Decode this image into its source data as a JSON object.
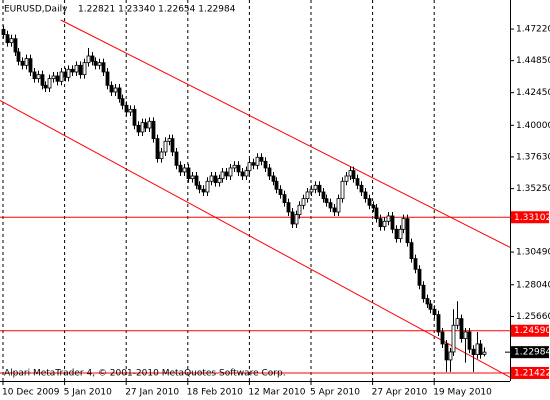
{
  "chart_data": {
    "type": "candlestick",
    "symbol": "EURUSD,Daily",
    "ohlc_text": "1.22821 1.23340 1.22654 1.22984",
    "footer": "Alpari MetaTrader 4, © 2001-2010 MetaQuotes Software Corp.",
    "ylim": [
      1.2082,
      1.494
    ],
    "yticks": [
      {
        "value": 1.4722,
        "label": "1.47220"
      },
      {
        "value": 1.4485,
        "label": "1.44850"
      },
      {
        "value": 1.4245,
        "label": "1.42450"
      },
      {
        "value": 1.4,
        "label": "1.40000"
      },
      {
        "value": 1.3763,
        "label": "1.37630"
      },
      {
        "value": 1.3525,
        "label": "1.35250"
      },
      {
        "value": 1.3049,
        "label": "1.30490"
      },
      {
        "value": 1.2804,
        "label": "1.28040"
      },
      {
        "value": 1.2566,
        "label": "1.25660"
      }
    ],
    "levels": [
      {
        "value": 1.33102,
        "label": "1.33102"
      },
      {
        "value": 1.2459,
        "label": "1.24590"
      },
      {
        "value": 1.21422,
        "label": "1.21422"
      }
    ],
    "level_color": "#ff0000",
    "current_price": {
      "value": 1.22984,
      "label": "1.22984"
    },
    "channel_lines": [
      {
        "x": [
          15,
          132
        ],
        "y": [
          1.479,
          1.308
        ]
      },
      {
        "x": [
          -1,
          132
        ],
        "y": [
          1.419,
          1.2105
        ]
      }
    ],
    "categories": [
      "10 Dec 2009",
      null,
      null,
      null,
      null,
      null,
      null,
      null,
      null,
      null,
      null,
      null,
      null,
      null,
      null,
      null,
      "5 Jan 2010",
      null,
      null,
      null,
      null,
      null,
      null,
      null,
      null,
      null,
      null,
      null,
      null,
      null,
      null,
      null,
      "27 Jan 2010",
      null,
      null,
      null,
      null,
      null,
      null,
      null,
      null,
      null,
      null,
      null,
      null,
      null,
      null,
      null,
      "18 Feb 2010",
      null,
      null,
      null,
      null,
      null,
      null,
      null,
      null,
      null,
      null,
      null,
      null,
      null,
      null,
      null,
      "12 Mar 2010",
      null,
      null,
      null,
      null,
      null,
      null,
      null,
      null,
      null,
      null,
      null,
      null,
      null,
      null,
      null,
      "5 Apr 2010",
      null,
      null,
      null,
      null,
      null,
      null,
      null,
      null,
      null,
      null,
      null,
      null,
      null,
      null,
      null,
      "27 Apr 2010",
      null,
      null,
      null,
      null,
      null,
      null,
      null,
      null,
      null,
      null,
      null,
      null,
      null,
      null,
      null,
      "19 May 2010",
      null,
      null,
      null,
      null,
      null,
      null,
      null,
      null,
      null,
      null,
      null,
      null,
      null
    ],
    "candles": [
      [
        1.472,
        1.475,
        1.465,
        1.468
      ],
      [
        1.468,
        1.471,
        1.459,
        1.462
      ],
      [
        1.462,
        1.468,
        1.459,
        1.465
      ],
      [
        1.465,
        1.468,
        1.452,
        1.455
      ],
      [
        1.455,
        1.458,
        1.445,
        1.448
      ],
      [
        1.448,
        1.451,
        1.442,
        1.445
      ],
      [
        1.445,
        1.453,
        1.442,
        1.45
      ],
      [
        1.45,
        1.453,
        1.437,
        1.44
      ],
      [
        1.44,
        1.443,
        1.432,
        1.435
      ],
      [
        1.435,
        1.441,
        1.432,
        1.438
      ],
      [
        1.438,
        1.441,
        1.427,
        1.43
      ],
      [
        1.43,
        1.433,
        1.425,
        1.428
      ],
      [
        1.428,
        1.438,
        1.425,
        1.435
      ],
      [
        1.435,
        1.44,
        1.432,
        1.437
      ],
      [
        1.437,
        1.44,
        1.43,
        1.433
      ],
      [
        1.433,
        1.443,
        1.43,
        1.44
      ],
      [
        1.44,
        1.443,
        1.433,
        1.436
      ],
      [
        1.436,
        1.445,
        1.433,
        1.442
      ],
      [
        1.442,
        1.445,
        1.437,
        1.44
      ],
      [
        1.44,
        1.448,
        1.437,
        1.445
      ],
      [
        1.445,
        1.448,
        1.435,
        1.438
      ],
      [
        1.438,
        1.45,
        1.435,
        1.447
      ],
      [
        1.447,
        1.458,
        1.444,
        1.452
      ],
      [
        1.452,
        1.455,
        1.445,
        1.448
      ],
      [
        1.448,
        1.451,
        1.442,
        1.445
      ],
      [
        1.445,
        1.45,
        1.442,
        1.447
      ],
      [
        1.447,
        1.45,
        1.437,
        1.44
      ],
      [
        1.44,
        1.443,
        1.427,
        1.43
      ],
      [
        1.43,
        1.433,
        1.422,
        1.425
      ],
      [
        1.425,
        1.431,
        1.422,
        1.428
      ],
      [
        1.428,
        1.431,
        1.417,
        1.42
      ],
      [
        1.42,
        1.423,
        1.412,
        1.415
      ],
      [
        1.415,
        1.418,
        1.407,
        1.41
      ],
      [
        1.41,
        1.415,
        1.407,
        1.412
      ],
      [
        1.412,
        1.415,
        1.397,
        1.4
      ],
      [
        1.4,
        1.403,
        1.392,
        1.395
      ],
      [
        1.395,
        1.405,
        1.392,
        1.402
      ],
      [
        1.402,
        1.405,
        1.395,
        1.398
      ],
      [
        1.398,
        1.406,
        1.395,
        1.403
      ],
      [
        1.403,
        1.406,
        1.387,
        1.39
      ],
      [
        1.39,
        1.393,
        1.372,
        1.375
      ],
      [
        1.375,
        1.383,
        1.372,
        1.38
      ],
      [
        1.38,
        1.391,
        1.377,
        1.388
      ],
      [
        1.388,
        1.393,
        1.385,
        1.39
      ],
      [
        1.39,
        1.393,
        1.377,
        1.38
      ],
      [
        1.38,
        1.383,
        1.367,
        1.37
      ],
      [
        1.37,
        1.373,
        1.362,
        1.365
      ],
      [
        1.365,
        1.371,
        1.362,
        1.368
      ],
      [
        1.368,
        1.371,
        1.357,
        1.36
      ],
      [
        1.36,
        1.365,
        1.357,
        1.362
      ],
      [
        1.362,
        1.365,
        1.352,
        1.355
      ],
      [
        1.355,
        1.358,
        1.349,
        1.352
      ],
      [
        1.352,
        1.355,
        1.347,
        1.35
      ],
      [
        1.35,
        1.361,
        1.347,
        1.358
      ],
      [
        1.358,
        1.365,
        1.355,
        1.362
      ],
      [
        1.362,
        1.365,
        1.354,
        1.357
      ],
      [
        1.357,
        1.363,
        1.354,
        1.36
      ],
      [
        1.36,
        1.368,
        1.357,
        1.365
      ],
      [
        1.365,
        1.368,
        1.359,
        1.362
      ],
      [
        1.362,
        1.371,
        1.359,
        1.368
      ],
      [
        1.368,
        1.373,
        1.365,
        1.37
      ],
      [
        1.37,
        1.373,
        1.362,
        1.365
      ],
      [
        1.365,
        1.368,
        1.359,
        1.362
      ],
      [
        1.362,
        1.369,
        1.359,
        1.366
      ],
      [
        1.366,
        1.375,
        1.363,
        1.372
      ],
      [
        1.372,
        1.375,
        1.367,
        1.37
      ],
      [
        1.37,
        1.379,
        1.367,
        1.376
      ],
      [
        1.376,
        1.379,
        1.37,
        1.373
      ],
      [
        1.373,
        1.376,
        1.365,
        1.368
      ],
      [
        1.368,
        1.371,
        1.359,
        1.362
      ],
      [
        1.362,
        1.365,
        1.355,
        1.358
      ],
      [
        1.358,
        1.361,
        1.349,
        1.352
      ],
      [
        1.352,
        1.355,
        1.345,
        1.348
      ],
      [
        1.348,
        1.351,
        1.339,
        1.342
      ],
      [
        1.342,
        1.345,
        1.332,
        1.335
      ],
      [
        1.335,
        1.338,
        1.323,
        1.326
      ],
      [
        1.326,
        1.336,
        1.323,
        1.333
      ],
      [
        1.333,
        1.343,
        1.33,
        1.34
      ],
      [
        1.34,
        1.348,
        1.337,
        1.345
      ],
      [
        1.345,
        1.353,
        1.342,
        1.35
      ],
      [
        1.35,
        1.355,
        1.347,
        1.352
      ],
      [
        1.352,
        1.358,
        1.349,
        1.355
      ],
      [
        1.355,
        1.358,
        1.347,
        1.35
      ],
      [
        1.35,
        1.353,
        1.342,
        1.345
      ],
      [
        1.345,
        1.348,
        1.339,
        1.342
      ],
      [
        1.342,
        1.345,
        1.335,
        1.338
      ],
      [
        1.338,
        1.341,
        1.332,
        1.335
      ],
      [
        1.335,
        1.348,
        1.332,
        1.345
      ],
      [
        1.345,
        1.361,
        1.342,
        1.358
      ],
      [
        1.358,
        1.365,
        1.355,
        1.362
      ],
      [
        1.362,
        1.369,
        1.359,
        1.366
      ],
      [
        1.366,
        1.369,
        1.357,
        1.36
      ],
      [
        1.36,
        1.363,
        1.352,
        1.355
      ],
      [
        1.355,
        1.358,
        1.347,
        1.35
      ],
      [
        1.35,
        1.353,
        1.342,
        1.345
      ],
      [
        1.345,
        1.348,
        1.337,
        1.34
      ],
      [
        1.34,
        1.343,
        1.335,
        1.338
      ],
      [
        1.338,
        1.341,
        1.327,
        1.33
      ],
      [
        1.33,
        1.333,
        1.321,
        1.324
      ],
      [
        1.324,
        1.331,
        1.321,
        1.328
      ],
      [
        1.328,
        1.335,
        1.325,
        1.332
      ],
      [
        1.332,
        1.335,
        1.319,
        1.322
      ],
      [
        1.322,
        1.325,
        1.312,
        1.315
      ],
      [
        1.315,
        1.325,
        1.312,
        1.322
      ],
      [
        1.322,
        1.333,
        1.319,
        1.33
      ],
      [
        1.33,
        1.333,
        1.309,
        1.312
      ],
      [
        1.312,
        1.315,
        1.297,
        1.3
      ],
      [
        1.3,
        1.303,
        1.289,
        1.292
      ],
      [
        1.292,
        1.295,
        1.277,
        1.28
      ],
      [
        1.28,
        1.283,
        1.267,
        1.27
      ],
      [
        1.27,
        1.273,
        1.263,
        1.266
      ],
      [
        1.266,
        1.269,
        1.259,
        1.262
      ],
      [
        1.262,
        1.265,
        1.255,
        1.258
      ],
      [
        1.258,
        1.261,
        1.242,
        1.245
      ],
      [
        1.245,
        1.248,
        1.233,
        1.236
      ],
      [
        1.236,
        1.239,
        1.215,
        1.224
      ],
      [
        1.224,
        1.233,
        1.215,
        1.23
      ],
      [
        1.23,
        1.262,
        1.227,
        1.25
      ],
      [
        1.25,
        1.268,
        1.247,
        1.255
      ],
      [
        1.255,
        1.258,
        1.237,
        1.24
      ],
      [
        1.24,
        1.248,
        1.222,
        1.245
      ],
      [
        1.245,
        1.248,
        1.229,
        1.232
      ],
      [
        1.232,
        1.235,
        1.215,
        1.228
      ],
      [
        1.228,
        1.245,
        1.225,
        1.236
      ],
      [
        1.236,
        1.239,
        1.225,
        1.228
      ],
      [
        1.22821,
        1.2334,
        1.22654,
        1.22984
      ]
    ],
    "up_color": "#ffffff",
    "down_color": "#000000",
    "grid": true
  }
}
